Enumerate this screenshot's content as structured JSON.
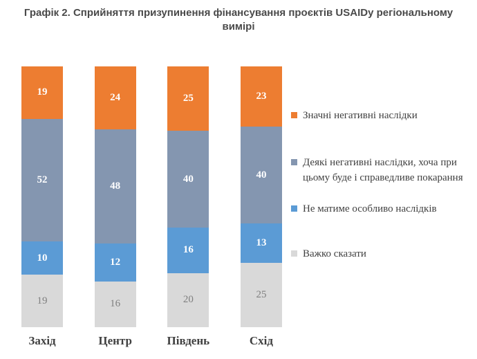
{
  "title": "Графік 2. Сприйняття призупинення фінансування проєктів USAIDy регіональному вимірі",
  "chart_data": {
    "type": "bar",
    "stacked": true,
    "orientation": "vertical",
    "title": "Графік 2. Сприйняття призупинення фінансування проєктів USAIDy регіональному вимірі",
    "categories": [
      "Захід",
      "Центр",
      "Південь",
      "Схід"
    ],
    "series": [
      {
        "name": "Значні негативні наслідки",
        "color": "#ED7D31",
        "label_color": "#FFFFFF",
        "values": [
          19,
          24,
          25,
          23
        ]
      },
      {
        "name": "Деякі негативні наслідки, хоча при цьому буде і справедливе покарання",
        "color": "#8496B0",
        "label_color": "#FFFFFF",
        "values": [
          52,
          48,
          40,
          40
        ]
      },
      {
        "name": "Не матиме особливо наслідків",
        "color": "#5B9BD5",
        "label_color": "#FFFFFF",
        "values": [
          10,
          12,
          16,
          13
        ]
      },
      {
        "name": "Важко сказати",
        "color": "#D9D9D9",
        "label_color": "#7F7F7F",
        "values": [
          19,
          16,
          20,
          25
        ]
      }
    ],
    "data_labels": true,
    "legend_position": "right",
    "xlabel": "",
    "ylabel": "",
    "ylim": [
      0,
      100
    ],
    "grid": false,
    "axes_visible": false
  }
}
